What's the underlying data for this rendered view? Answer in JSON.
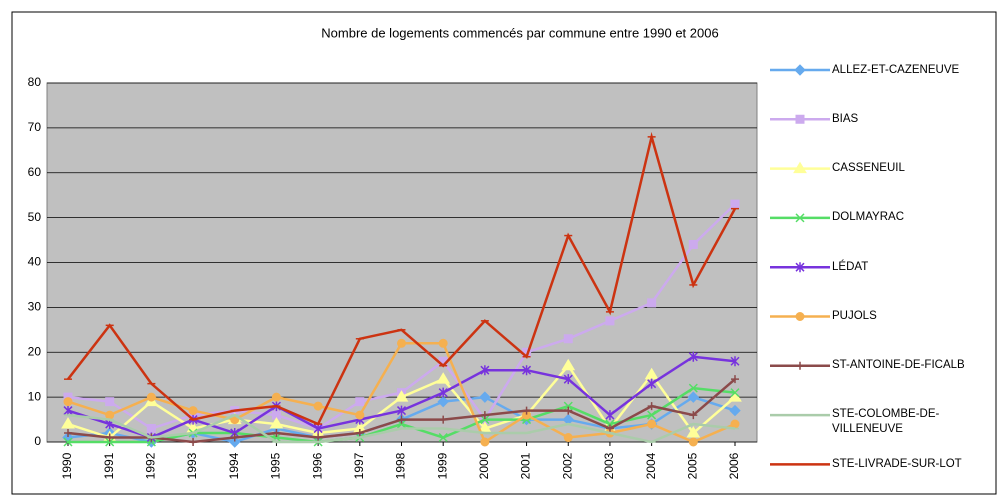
{
  "chart_data": {
    "type": "line",
    "title": "Nombre de logements commencés par commune entre 1990 et 2006",
    "categories": [
      "1990",
      "1991",
      "1992",
      "1993",
      "1994",
      "1995",
      "1996",
      "1997",
      "1998",
      "1999",
      "2000",
      "2001",
      "2002",
      "2003",
      "2004",
      "2005",
      "2006"
    ],
    "ylim": [
      0,
      80
    ],
    "yticks": [
      0,
      10,
      20,
      30,
      40,
      50,
      60,
      70,
      80
    ],
    "grid": true,
    "legend": "right",
    "series": [
      {
        "name": "ALLEZ-ET-CAZENEUVE",
        "color": "#66aaee",
        "marker": "diamond",
        "values": [
          1,
          2,
          0,
          2,
          0,
          3,
          1,
          2,
          5,
          9,
          10,
          5,
          5,
          3,
          4,
          10,
          7
        ]
      },
      {
        "name": "BIAS",
        "color": "#ccaaee",
        "marker": "square",
        "values": [
          10,
          9,
          3,
          6,
          7,
          6,
          3,
          9,
          11,
          18,
          5,
          20,
          23,
          27,
          31,
          44,
          53
        ]
      },
      {
        "name": "CASSENEUIL",
        "color": "#ffff99",
        "marker": "triangle",
        "values": [
          4,
          1,
          9,
          3,
          5,
          4,
          2,
          3,
          10,
          14,
          3,
          6,
          17,
          3,
          15,
          2,
          10
        ]
      },
      {
        "name": "DOLMAYRAC",
        "color": "#55dd66",
        "marker": "x",
        "values": [
          0,
          0,
          0,
          2,
          2,
          1,
          0,
          1,
          4,
          1,
          5,
          5,
          8,
          4,
          6,
          12,
          11
        ]
      },
      {
        "name": "LÉDAT",
        "color": "#7733dd",
        "marker": "star",
        "values": [
          7,
          4,
          1,
          5,
          2,
          8,
          3,
          5,
          7,
          11,
          16,
          16,
          14,
          6,
          13,
          19,
          18
        ]
      },
      {
        "name": "PUJOLS",
        "color": "#f5b050",
        "marker": "circle",
        "values": [
          9,
          6,
          10,
          7,
          5,
          10,
          8,
          6,
          22,
          22,
          0,
          6,
          1,
          2,
          4,
          0,
          4
        ]
      },
      {
        "name": "ST-ANTOINE-DE-FICALB",
        "color": "#8b4a4a",
        "marker": "plus",
        "values": [
          2,
          1,
          1,
          0,
          1,
          2,
          1,
          2,
          5,
          5,
          6,
          7,
          7,
          3,
          8,
          6,
          14
        ]
      },
      {
        "name": "STE-COLOMBE-DE-VILLENEUVE",
        "color": "#aaccaa",
        "marker": "dash",
        "values": [
          6,
          5,
          1,
          2,
          6,
          0,
          0,
          1,
          3,
          3,
          2,
          2,
          4,
          2,
          0,
          4,
          3
        ]
      },
      {
        "name": "STE-LIVRADE-SUR-LOT",
        "color": "#cc3311",
        "marker": "dash",
        "values": [
          14,
          26,
          13,
          5,
          7,
          8,
          4,
          23,
          25,
          17,
          27,
          19,
          46,
          29,
          68,
          35,
          52
        ]
      }
    ]
  }
}
